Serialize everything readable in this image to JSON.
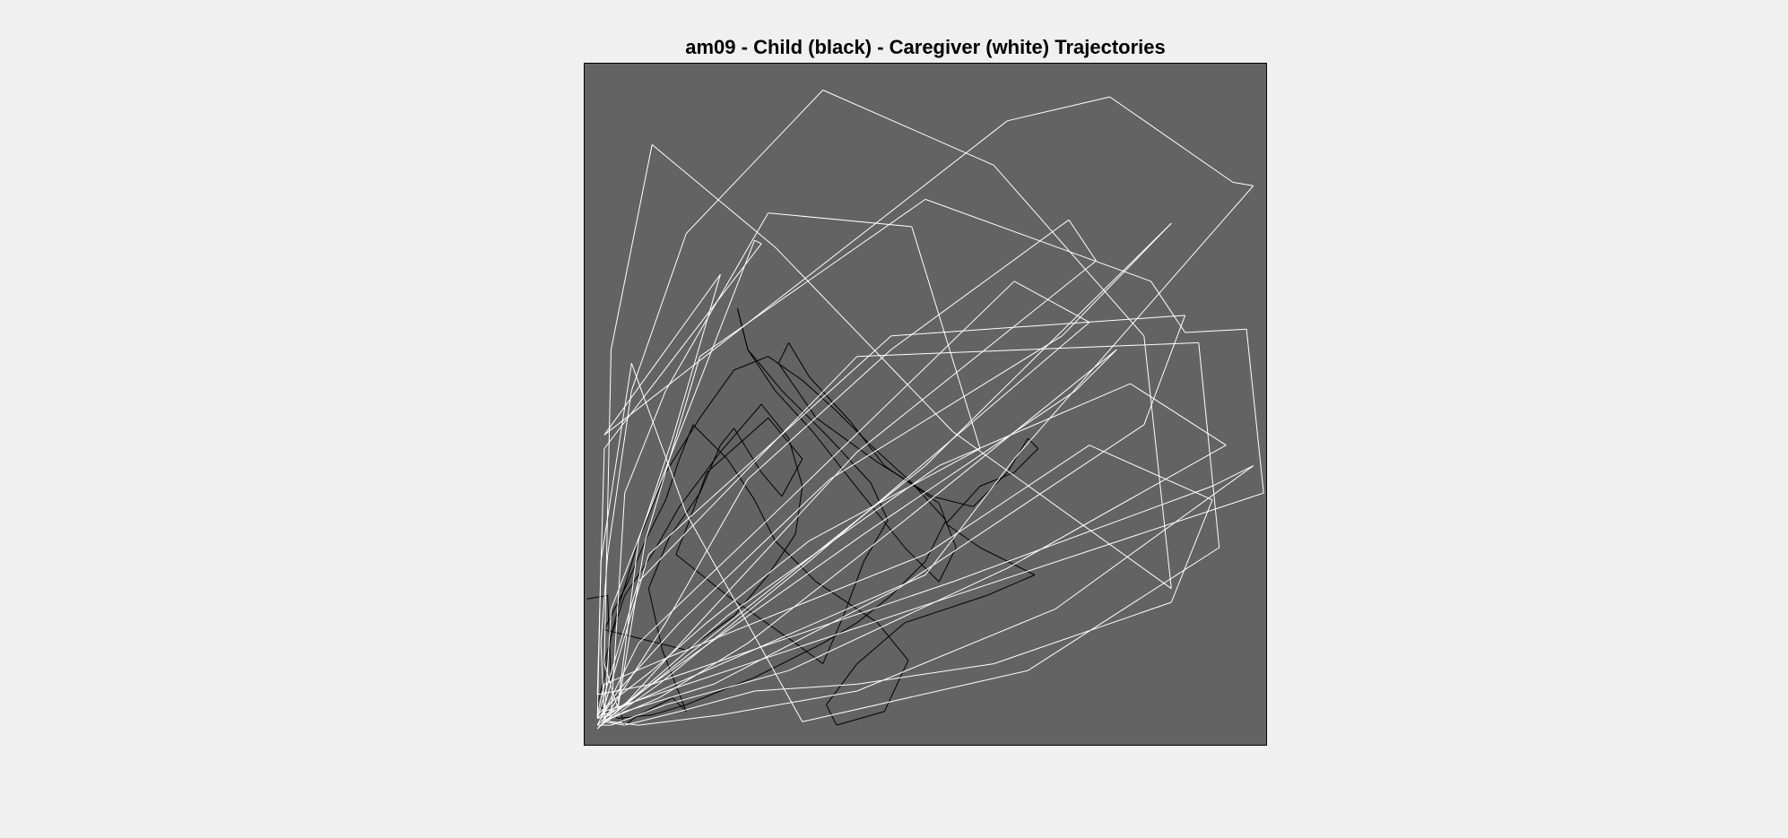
{
  "chart_data": {
    "type": "line",
    "title": "am09 - Child (black) - Caregiver (white) Trajectories",
    "xlabel": "",
    "ylabel": "",
    "xlim": [
      0,
      100
    ],
    "ylim": [
      0,
      100
    ],
    "grid": false,
    "axes_visible": false,
    "legend": "none",
    "background_color": "#636363",
    "border_color": "#000000",
    "series": [
      {
        "color": "#000000",
        "x": [
          0.5,
          3.5,
          4.0,
          6.0,
          8.0,
          13.0,
          15.0,
          11.5,
          9.5,
          12.5,
          17.0,
          20.0,
          22.0,
          26.0,
          29.0,
          32.0,
          27.0,
          18.0,
          15.5,
          13.5,
          21.0,
          31.0,
          35.0,
          38.0,
          41.0,
          44.5,
          42.0,
          36.0,
          29.0,
          24.0,
          22.5,
          24.0,
          28.0,
          33.5,
          39.0,
          47.0,
          52.0,
          54.5,
          52.0,
          44.0,
          39.0,
          33.0,
          30.0,
          28.5,
          34.0,
          43.0,
          51.0,
          57.0,
          62.0,
          65.0,
          66.5,
          63.0,
          58.0,
          53.0,
          58.0,
          66.0,
          59.0,
          47.0,
          40.0,
          35.5,
          37.0,
          44.0,
          47.5,
          43.0,
          34.0,
          28.0,
          25.0,
          21.0,
          16.0,
          14.0,
          12.0,
          9.0,
          6.5,
          3.0,
          15.0,
          22.0,
          27.0,
          31.0,
          32.0,
          30.0,
          26.0,
          20.0,
          14.0,
          10.0,
          6.0,
          4.0,
          3.0,
          2.0,
          5.0,
          10.0,
          15.0,
          20.0,
          25.0,
          30.0,
          35.0,
          40.0,
          45.0,
          50.0,
          53.0,
          48.0,
          42.0,
          37.0,
          32.0,
          27.0,
          22.0,
          17.0,
          12.0,
          8.0,
          5.0,
          3.0
        ],
        "y": [
          21.5,
          22.0,
          9.0,
          3.0,
          4.5,
          7.0,
          5.0,
          14.0,
          23.0,
          30.5,
          37.0,
          44.0,
          46.5,
          40.0,
          36.5,
          42.0,
          48.0,
          40.0,
          33.0,
          28.0,
          22.0,
          15.0,
          12.0,
          19.0,
          27.0,
          33.0,
          38.5,
          45.0,
          52.0,
          58.0,
          64.0,
          58.0,
          52.0,
          46.0,
          39.0,
          29.0,
          24.0,
          29.0,
          35.5,
          41.0,
          47.5,
          54.0,
          59.0,
          56.0,
          48.0,
          41.5,
          36.5,
          35.0,
          40.0,
          45.0,
          43.5,
          40.0,
          38.0,
          32.5,
          29.0,
          25.0,
          22.0,
          18.0,
          12.0,
          6.0,
          3.0,
          5.0,
          12.5,
          18.0,
          24.0,
          30.0,
          36.0,
          42.0,
          47.0,
          42.0,
          36.0,
          30.0,
          24.0,
          17.0,
          14.0,
          19.0,
          25.0,
          31.0,
          38.0,
          45.0,
          50.0,
          43.0,
          35.0,
          28.0,
          22.0,
          16.0,
          10.0,
          6.0,
          4.0,
          4.5,
          6.0,
          8.0,
          10.0,
          12.5,
          15.0,
          18.0,
          22.0,
          27.0,
          33.0,
          38.5,
          44.0,
          49.0,
          53.5,
          57.0,
          55.0,
          48.0,
          40.0,
          30.0,
          20.0,
          12.0
        ]
      },
      {
        "color": "#ffffff",
        "x": [
          2.0,
          5.0,
          8.0,
          13.0,
          20.0,
          3.0,
          62.0,
          77.0,
          95.0,
          98.0,
          63.0,
          50.0,
          3.0,
          2.5,
          3.5,
          7.0,
          15.0,
          35.0,
          60.0,
          82.0,
          86.0,
          54.0,
          28.0,
          10.0,
          4.0,
          3.0,
          5.0,
          9.0,
          17.0,
          50.0,
          83.0,
          88.0,
          97.0,
          99.5,
          3.0,
          2.0,
          8.0,
          40.0,
          90.0,
          93.0,
          65.0,
          32.0,
          15.0,
          7.0,
          2.5,
          2.0,
          4.0,
          6.0,
          12.0,
          27.0,
          48.0,
          58.0,
          33.0,
          18.0,
          10.0,
          3.5,
          2.0,
          3.0,
          12.5,
          50.0,
          74.0,
          92.0,
          86.0,
          60.0,
          40.0,
          25.0,
          14.0,
          6.0,
          3.0,
          4.0,
          25.0,
          26.0,
          3.0,
          2.0,
          10.0,
          54.0,
          92.0,
          98.0,
          69.0,
          40.0,
          20.0,
          8.0,
          4.0,
          3.0,
          17.0,
          41.0,
          72.0,
          78.0,
          47.0,
          24.0,
          11.0,
          4.0,
          3.0,
          50.0,
          86.0,
          70.0,
          36.0,
          14.0,
          5.0,
          2.5,
          9.5,
          45.0,
          88.0,
          82.0,
          46.0,
          19.0,
          6.0,
          3.0,
          2.0,
          21.0,
          52.0,
          80.0,
          94.0,
          62.0,
          30.0,
          12.0,
          4.0,
          2.0,
          8.0,
          30.0,
          63.0,
          74.0,
          33.0,
          11.0,
          4.0,
          2.5,
          5.0,
          12.0,
          24.0,
          45.0,
          71.0,
          75.0,
          40.0,
          16.0,
          6.0,
          3.0
        ],
        "y": [
          3.0,
          6.0,
          30.0,
          45.0,
          69.0,
          45.5,
          91.5,
          95.0,
          82.5,
          82.0,
          42.0,
          25.0,
          4.5,
          15.0,
          28.0,
          52.0,
          75.0,
          96.0,
          85.0,
          60.0,
          23.0,
          46.0,
          73.0,
          88.0,
          58.0,
          12.0,
          5.5,
          30.0,
          57.0,
          80.0,
          68.0,
          60.5,
          61.0,
          37.0,
          5.0,
          4.0,
          24.0,
          57.0,
          59.0,
          29.0,
          11.0,
          3.5,
          34.0,
          56.0,
          27.0,
          4.0,
          4.5,
          37.0,
          52.0,
          78.0,
          76.0,
          43.5,
          30.0,
          18.0,
          11.0,
          6.0,
          4.5,
          9.0,
          13.0,
          28.0,
          44.0,
          36.0,
          21.0,
          12.0,
          9.0,
          8.0,
          5.0,
          3.0,
          3.5,
          20.0,
          74.0,
          73.5,
          43.5,
          7.5,
          9.0,
          24.0,
          38.0,
          41.0,
          20.0,
          8.0,
          4.5,
          3.0,
          3.5,
          4.0,
          14.0,
          31.0,
          52.0,
          58.0,
          33.0,
          15.0,
          7.0,
          4.0,
          3.5,
          41.0,
          76.5,
          60.0,
          39.0,
          18.0,
          8.0,
          4.0,
          28.0,
          60.0,
          63.0,
          47.0,
          23.0,
          9.0,
          5.0,
          3.5,
          2.5,
          19.0,
          41.0,
          53.0,
          44.0,
          26.0,
          11.0,
          6.0,
          3.0,
          3.0,
          15.0,
          36.0,
          68.0,
          62.0,
          27.0,
          9.0,
          4.0,
          3.0,
          7.0,
          18.0,
          39.0,
          58.0,
          77.0,
          71.0,
          43.0,
          17.0,
          6.0,
          3.5
        ]
      }
    ]
  }
}
